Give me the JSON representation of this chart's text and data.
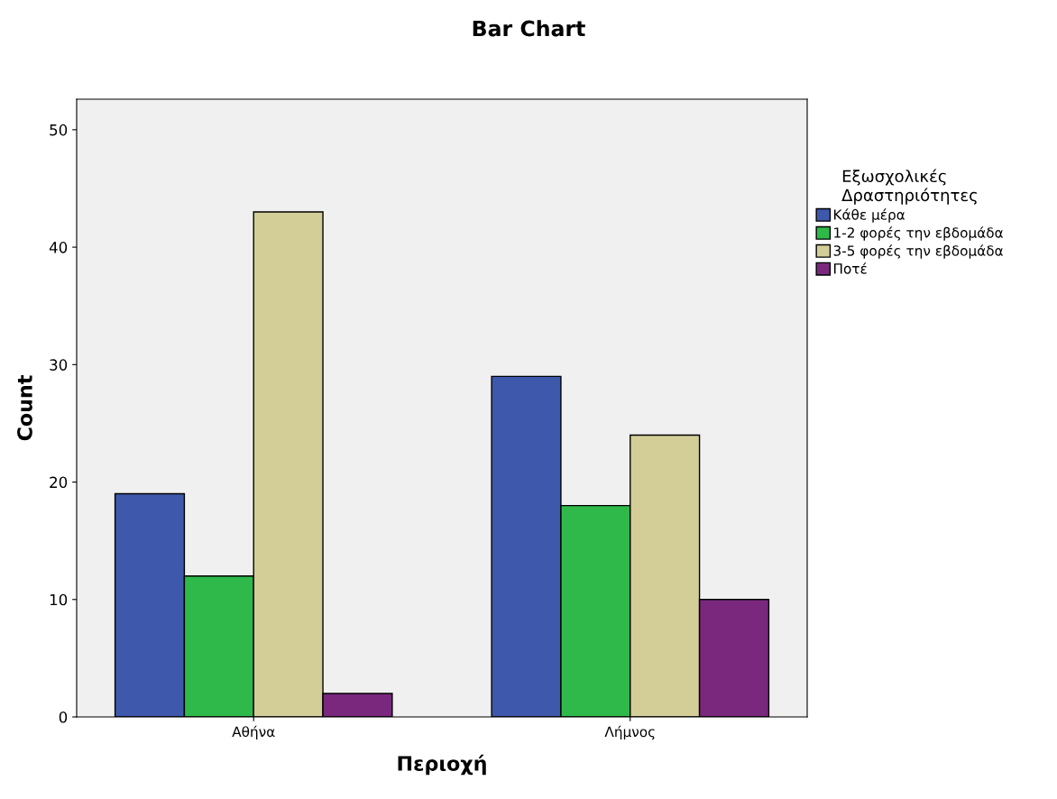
{
  "chart_data": {
    "type": "bar",
    "title": "Bar Chart",
    "xlabel": "Περιοχή",
    "ylabel": "Count",
    "legend_title": "Εξωσχολικές\nΔραστηριότητες",
    "categories": [
      "Αθήνα",
      "Λήμνος"
    ],
    "series": [
      {
        "name": "Κάθε μέρα",
        "color": "#3e58ac",
        "values": [
          19,
          29
        ]
      },
      {
        "name": "1-2 φορές την εβδομάδα",
        "color": "#2fb94a",
        "values": [
          12,
          18
        ]
      },
      {
        "name": "3-5 φορές την εβδομάδα",
        "color": "#d3ce97",
        "values": [
          43,
          24
        ]
      },
      {
        "name": "Ποτέ",
        "color": "#79287d",
        "values": [
          2,
          10
        ]
      }
    ],
    "ylim": [
      0,
      52.6
    ],
    "yticks": [
      0,
      10,
      20,
      30,
      40,
      50
    ],
    "grid": false,
    "legend": "right"
  }
}
